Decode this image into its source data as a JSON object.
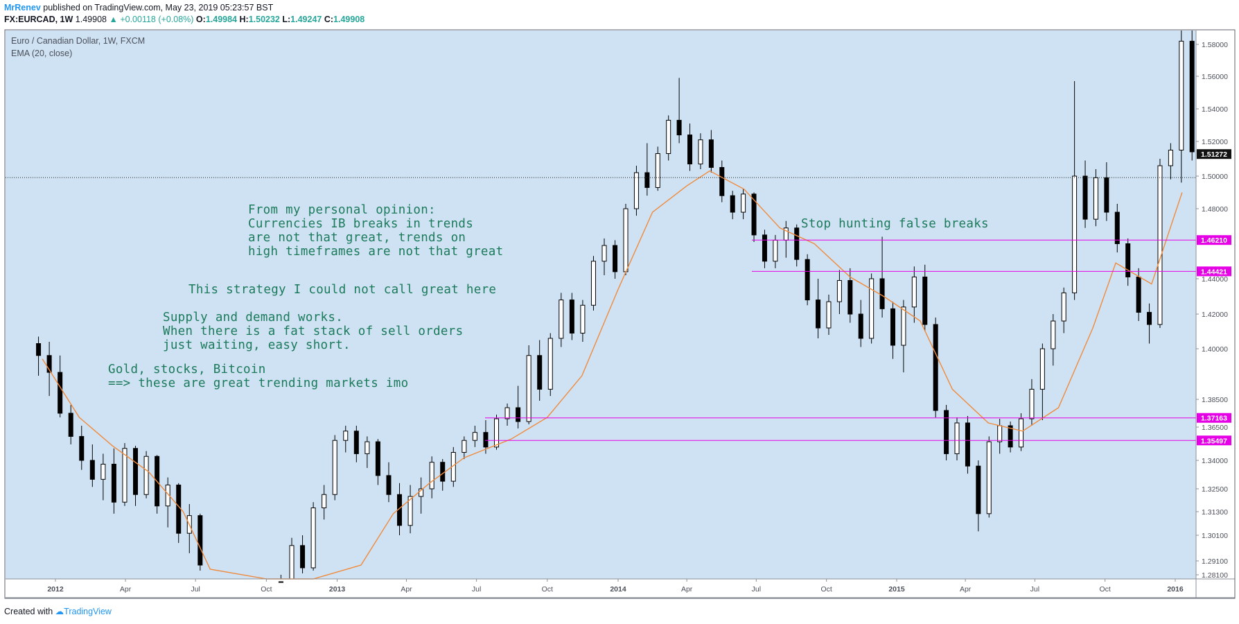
{
  "header": {
    "author": "MrRenev",
    "published": "published on TradingView.com, May 23, 2019 05:23:57 BST",
    "symbol": "FX:EURCAD, 1W",
    "last": "1.49908",
    "change": "+0.00118 (+0.08%)",
    "o_label": "O:",
    "o": "1.49984",
    "h_label": "H:",
    "h": "1.50232",
    "l_label": "L:",
    "l": "1.49247",
    "c_label": "C:",
    "c": "1.49908"
  },
  "legend": {
    "title": "Euro / Canadian Dollar, 1W, FXCM",
    "indicator": "EMA (20, close)"
  },
  "annotations": {
    "opinion": "From my personal opinion:\nCurrencies IB breaks in trends\nare not that great, trends on\nhigh timeframes are not that great",
    "strategy": "This strategy I could not call great here",
    "supply": "Supply and demand works.\nWhen there is a fat stack of sell orders\njust waiting, easy short.",
    "gold": "Gold, stocks, Bitcoin\n==> these are great trending markets imo",
    "stop": "Stop hunting false breaks"
  },
  "footer": {
    "created_with": "Created with",
    "brand": "TradingView"
  },
  "colors": {
    "plot_bg": "#cfe2f3",
    "ema": "#f08a3c",
    "level_line": "#e600e6",
    "note_text": "#1a7a5a",
    "bull_body": "#ffffff",
    "bear_body": "#000000"
  },
  "chart_data": {
    "type": "candlestick",
    "title": "Euro / Canadian Dollar, 1W, FXCM",
    "x_tick_labels": [
      "2012",
      "Apr",
      "Jul",
      "Oct",
      "2013",
      "Apr",
      "Jul",
      "Oct",
      "2014",
      "Apr",
      "Jul",
      "Oct",
      "2015",
      "Apr",
      "Jul",
      "Oct",
      "2016"
    ],
    "y_tick_labels": [
      "1.58000",
      "1.56000",
      "1.54000",
      "1.52000",
      "1.50000",
      "1.48000",
      "1.44000",
      "1.42000",
      "1.40000",
      "1.38500",
      "1.36500",
      "1.34000",
      "1.32500",
      "1.31300",
      "1.30100",
      "1.29100",
      "1.28100"
    ],
    "ylim": [
      1.278,
      1.59
    ],
    "current_price": {
      "value": 1.51272,
      "label": "1.51272"
    },
    "dotted_line_value": 1.49908,
    "horizontal_levels": [
      {
        "value": 1.4621,
        "label": "1.46210"
      },
      {
        "value": 1.44421,
        "label": "1.44421"
      },
      {
        "value": 1.37163,
        "label": "1.37163"
      },
      {
        "value": 1.35497,
        "label": "1.35497"
      }
    ],
    "indicator": "EMA (20, close)",
    "ema_approx": [
      [
        "2011-12-15",
        1.397
      ],
      [
        "2012-02-01",
        1.372
      ],
      [
        "2012-03-15",
        1.351
      ],
      [
        "2012-05-01",
        1.334
      ],
      [
        "2012-06-15",
        1.313
      ],
      [
        "2012-07-20",
        1.285
      ],
      [
        "2012-10-01",
        1.252
      ],
      [
        "2012-12-01",
        1.268
      ],
      [
        "2013-02-01",
        1.288
      ],
      [
        "2013-03-15",
        1.312
      ],
      [
        "2013-05-01",
        1.328
      ],
      [
        "2013-06-15",
        1.342
      ],
      [
        "2013-08-15",
        1.356
      ],
      [
        "2013-10-01",
        1.372
      ],
      [
        "2013-11-15",
        1.392
      ],
      [
        "2014-01-01",
        1.434
      ],
      [
        "2014-02-15",
        1.478
      ],
      [
        "2014-04-01",
        1.494
      ],
      [
        "2014-05-01",
        1.503
      ],
      [
        "2014-06-15",
        1.492
      ],
      [
        "2014-08-01",
        1.469
      ],
      [
        "2014-09-15",
        1.46
      ],
      [
        "2014-11-01",
        1.441
      ],
      [
        "2014-12-15",
        1.43
      ],
      [
        "2015-02-01",
        1.416
      ],
      [
        "2015-03-15",
        1.388
      ],
      [
        "2015-05-01",
        1.368
      ],
      [
        "2015-06-15",
        1.362
      ],
      [
        "2015-08-01",
        1.379
      ],
      [
        "2015-09-15",
        1.412
      ],
      [
        "2015-10-15",
        1.449
      ],
      [
        "2015-12-01",
        1.437
      ],
      [
        "2016-01-10",
        1.49
      ]
    ],
    "weekly_ohlc_approx": [
      [
        "2011-12-10",
        1.403,
        1.407,
        1.392,
        1.398
      ],
      [
        "2011-12-24",
        1.398,
        1.404,
        1.386,
        1.393
      ],
      [
        "2012-01-07",
        1.393,
        1.398,
        1.372,
        1.375
      ],
      [
        "2012-01-21",
        1.375,
        1.381,
        1.352,
        1.358
      ],
      [
        "2012-02-04",
        1.358,
        1.366,
        1.335,
        1.34
      ],
      [
        "2012-02-18",
        1.34,
        1.352,
        1.326,
        1.33
      ],
      [
        "2012-03-03",
        1.33,
        1.345,
        1.319,
        1.338
      ],
      [
        "2012-03-17",
        1.338,
        1.349,
        1.312,
        1.318
      ],
      [
        "2012-03-31",
        1.318,
        1.353,
        1.316,
        1.349
      ],
      [
        "2012-04-14",
        1.349,
        1.351,
        1.316,
        1.322
      ],
      [
        "2012-04-28",
        1.322,
        1.347,
        1.32,
        1.343
      ],
      [
        "2012-05-12",
        1.343,
        1.344,
        1.312,
        1.316
      ],
      [
        "2012-05-26",
        1.316,
        1.331,
        1.305,
        1.327
      ],
      [
        "2012-06-09",
        1.327,
        1.328,
        1.298,
        1.302
      ],
      [
        "2012-06-23",
        1.302,
        1.317,
        1.294,
        1.311
      ],
      [
        "2012-07-07",
        1.311,
        1.312,
        1.284,
        1.288
      ],
      [
        "2012-10-20",
        1.276,
        1.281,
        1.262,
        1.268
      ],
      [
        "2012-11-03",
        1.268,
        1.3,
        1.266,
        1.297
      ],
      [
        "2012-11-17",
        1.297,
        1.301,
        1.282,
        1.286
      ],
      [
        "2012-12-01",
        1.286,
        1.318,
        1.284,
        1.315
      ],
      [
        "2012-12-15",
        1.315,
        1.327,
        1.309,
        1.322
      ],
      [
        "2012-12-29",
        1.322,
        1.359,
        1.319,
        1.355
      ],
      [
        "2013-01-12",
        1.355,
        1.366,
        1.346,
        1.362
      ],
      [
        "2013-01-26",
        1.362,
        1.366,
        1.339,
        1.345
      ],
      [
        "2013-02-09",
        1.345,
        1.358,
        1.336,
        1.354
      ],
      [
        "2013-02-23",
        1.354,
        1.356,
        1.327,
        1.332
      ],
      [
        "2013-03-09",
        1.332,
        1.339,
        1.318,
        1.322
      ],
      [
        "2013-03-23",
        1.322,
        1.328,
        1.301,
        1.306
      ],
      [
        "2013-04-06",
        1.306,
        1.327,
        1.302,
        1.321
      ],
      [
        "2013-04-20",
        1.321,
        1.331,
        1.312,
        1.325
      ],
      [
        "2013-05-04",
        1.325,
        1.343,
        1.32,
        1.339
      ],
      [
        "2013-05-18",
        1.339,
        1.341,
        1.324,
        1.329
      ],
      [
        "2013-06-01",
        1.329,
        1.35,
        1.326,
        1.346
      ],
      [
        "2013-06-15",
        1.346,
        1.358,
        1.341,
        1.355
      ],
      [
        "2013-06-29",
        1.355,
        1.366,
        1.35,
        1.361
      ],
      [
        "2013-07-13",
        1.361,
        1.37,
        1.345,
        1.35
      ],
      [
        "2013-07-27",
        1.35,
        1.374,
        1.348,
        1.371
      ],
      [
        "2013-08-10",
        1.371,
        1.382,
        1.366,
        1.379
      ],
      [
        "2013-08-24",
        1.379,
        1.389,
        1.364,
        1.369
      ],
      [
        "2013-09-07",
        1.369,
        1.402,
        1.367,
        1.398
      ],
      [
        "2013-09-21",
        1.398,
        1.405,
        1.384,
        1.388
      ],
      [
        "2013-10-05",
        1.388,
        1.409,
        1.386,
        1.406
      ],
      [
        "2013-10-19",
        1.406,
        1.432,
        1.401,
        1.428
      ],
      [
        "2013-11-02",
        1.428,
        1.432,
        1.405,
        1.409
      ],
      [
        "2013-11-16",
        1.409,
        1.428,
        1.404,
        1.425
      ],
      [
        "2013-11-30",
        1.425,
        1.453,
        1.422,
        1.45
      ],
      [
        "2013-12-14",
        1.45,
        1.463,
        1.442,
        1.459
      ],
      [
        "2013-12-28",
        1.459,
        1.462,
        1.44,
        1.444
      ],
      [
        "2014-01-11",
        1.444,
        1.483,
        1.442,
        1.48
      ],
      [
        "2014-01-25",
        1.48,
        1.506,
        1.476,
        1.502
      ],
      [
        "2014-02-08",
        1.502,
        1.519,
        1.488,
        1.493
      ],
      [
        "2014-02-22",
        1.493,
        1.517,
        1.491,
        1.513
      ],
      [
        "2014-03-08",
        1.513,
        1.536,
        1.509,
        1.533
      ],
      [
        "2014-03-22",
        1.533,
        1.559,
        1.519,
        1.524
      ],
      [
        "2014-04-05",
        1.524,
        1.531,
        1.503,
        1.507
      ],
      [
        "2014-04-19",
        1.507,
        1.525,
        1.504,
        1.521
      ],
      [
        "2014-05-03",
        1.521,
        1.527,
        1.502,
        1.505
      ],
      [
        "2014-05-17",
        1.505,
        1.509,
        1.484,
        1.488
      ],
      [
        "2014-05-31",
        1.488,
        1.491,
        1.474,
        1.478
      ],
      [
        "2014-06-14",
        1.478,
        1.492,
        1.474,
        1.489
      ],
      [
        "2014-06-28",
        1.489,
        1.49,
        1.461,
        1.465
      ],
      [
        "2014-07-12",
        1.465,
        1.468,
        1.446,
        1.45
      ],
      [
        "2014-07-26",
        1.45,
        1.465,
        1.446,
        1.462
      ],
      [
        "2014-08-09",
        1.462,
        1.473,
        1.452,
        1.469
      ],
      [
        "2014-08-23",
        1.469,
        1.471,
        1.447,
        1.451
      ],
      [
        "2014-09-06",
        1.451,
        1.454,
        1.425,
        1.428
      ],
      [
        "2014-09-20",
        1.428,
        1.44,
        1.406,
        1.412
      ],
      [
        "2014-10-04",
        1.412,
        1.431,
        1.408,
        1.427
      ],
      [
        "2014-10-18",
        1.427,
        1.445,
        1.42,
        1.439
      ],
      [
        "2014-11-01",
        1.439,
        1.446,
        1.415,
        1.42
      ],
      [
        "2014-11-15",
        1.42,
        1.428,
        1.401,
        1.406
      ],
      [
        "2014-11-29",
        1.406,
        1.443,
        1.403,
        1.44
      ],
      [
        "2014-12-13",
        1.44,
        1.464,
        1.418,
        1.423
      ],
      [
        "2014-12-27",
        1.423,
        1.427,
        1.397,
        1.402
      ],
      [
        "2015-01-10",
        1.402,
        1.428,
        1.393,
        1.424
      ],
      [
        "2015-01-24",
        1.424,
        1.447,
        1.415,
        1.441
      ],
      [
        "2015-02-07",
        1.441,
        1.448,
        1.41,
        1.414
      ],
      [
        "2015-02-21",
        1.414,
        1.418,
        1.372,
        1.377
      ],
      [
        "2015-03-07",
        1.377,
        1.381,
        1.34,
        1.345
      ],
      [
        "2015-03-21",
        1.345,
        1.372,
        1.34,
        1.368
      ],
      [
        "2015-04-04",
        1.368,
        1.373,
        1.333,
        1.337
      ],
      [
        "2015-04-18",
        1.337,
        1.34,
        1.303,
        1.312
      ],
      [
        "2015-05-02",
        1.312,
        1.358,
        1.31,
        1.354
      ],
      [
        "2015-05-16",
        1.354,
        1.371,
        1.345,
        1.366
      ],
      [
        "2015-05-30",
        1.366,
        1.369,
        1.346,
        1.35
      ],
      [
        "2015-06-13",
        1.35,
        1.375,
        1.347,
        1.371
      ],
      [
        "2015-06-27",
        1.371,
        1.391,
        1.366,
        1.388
      ],
      [
        "2015-07-11",
        1.388,
        1.403,
        1.37,
        1.4
      ],
      [
        "2015-07-25",
        1.4,
        1.42,
        1.395,
        1.416
      ],
      [
        "2015-08-08",
        1.416,
        1.435,
        1.409,
        1.432
      ],
      [
        "2015-08-22",
        1.432,
        1.557,
        1.428,
        1.5
      ],
      [
        "2015-09-05",
        1.5,
        1.509,
        1.469,
        1.474
      ],
      [
        "2015-09-19",
        1.474,
        1.504,
        1.47,
        1.499
      ],
      [
        "2015-10-03",
        1.499,
        1.508,
        1.473,
        1.478
      ],
      [
        "2015-10-17",
        1.478,
        1.483,
        1.455,
        1.46
      ],
      [
        "2015-10-31",
        1.46,
        1.463,
        1.436,
        1.441
      ],
      [
        "2015-11-14",
        1.441,
        1.446,
        1.416,
        1.421
      ],
      [
        "2015-11-28",
        1.421,
        1.426,
        1.403,
        1.414
      ],
      [
        "2015-12-12",
        1.414,
        1.51,
        1.412,
        1.506
      ],
      [
        "2015-12-26",
        1.506,
        1.519,
        1.498,
        1.515
      ],
      [
        "2016-01-09",
        1.515,
        1.595,
        1.496,
        1.582
      ],
      [
        "2016-01-23",
        1.582,
        1.591,
        1.509,
        1.514
      ]
    ]
  }
}
